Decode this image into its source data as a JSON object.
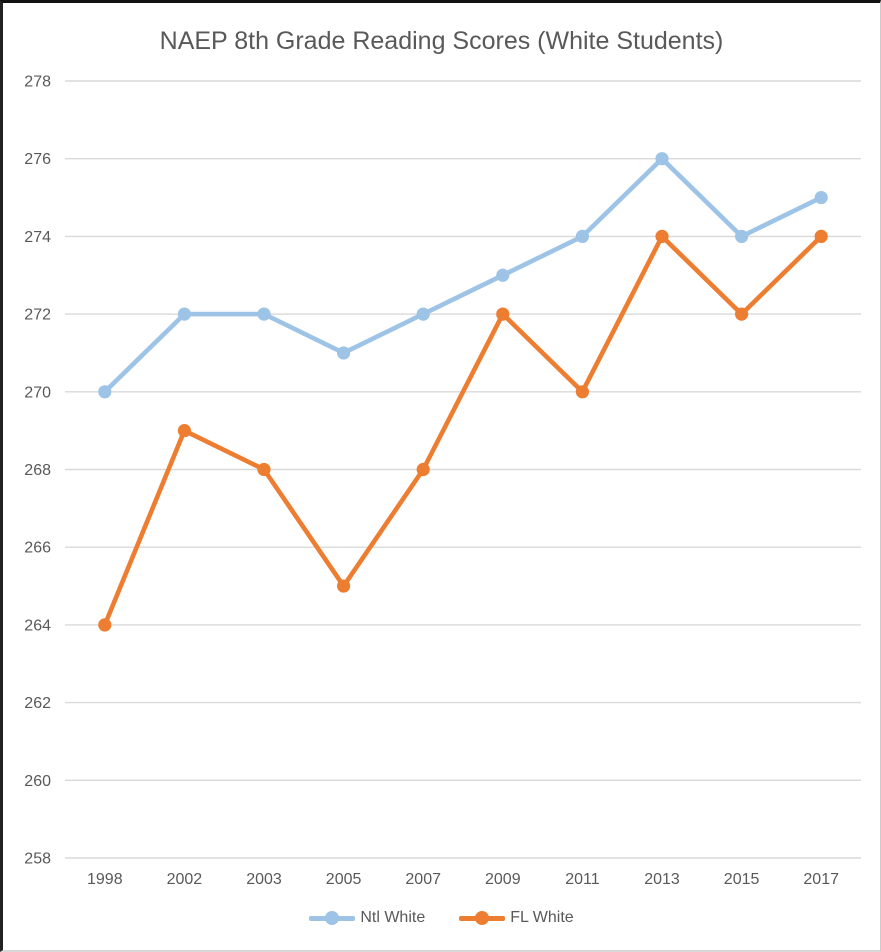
{
  "window": {
    "background": "#ffffff"
  },
  "chart_data": {
    "type": "line",
    "title": "NAEP 8th Grade Reading Scores (White Students)",
    "categories": [
      "1998",
      "2002",
      "2003",
      "2005",
      "2007",
      "2009",
      "2011",
      "2013",
      "2015",
      "2017"
    ],
    "series": [
      {
        "name": "Ntl White",
        "color": "#9DC3E6",
        "values": [
          270,
          272,
          272,
          271,
          272,
          273,
          274,
          276,
          274,
          275
        ]
      },
      {
        "name": "FL White",
        "color": "#ED7D31",
        "values": [
          264,
          269,
          268,
          265,
          268,
          272,
          270,
          274,
          272,
          274
        ]
      }
    ],
    "xlabel": "",
    "ylabel": "",
    "ylim": [
      258,
      278
    ],
    "yticks": [
      258,
      260,
      262,
      264,
      266,
      268,
      270,
      272,
      274,
      276,
      278
    ],
    "grid": true,
    "legend_position": "bottom",
    "colors": {
      "text": "#595959",
      "grid": "#d9d9d9"
    }
  }
}
